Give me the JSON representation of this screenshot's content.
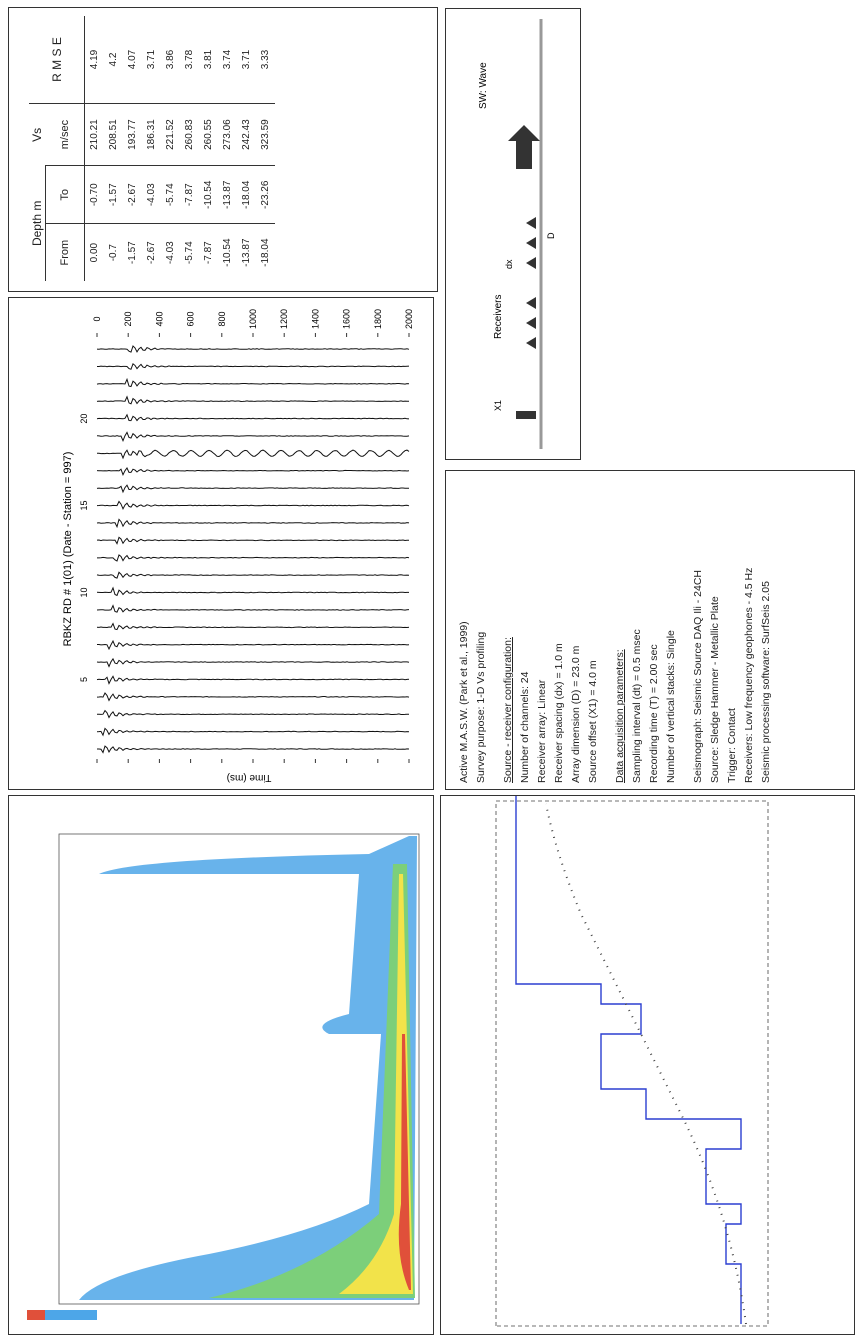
{
  "traces": {
    "title": "RBKZ RD # 1(01) (Date - Station = 997)",
    "trace_labels": [
      "5",
      "10",
      "15",
      "20"
    ],
    "time_ticks": [
      0,
      200,
      400,
      600,
      800,
      1000,
      1200,
      1400,
      1600,
      1800,
      2000
    ],
    "time_label": "Time (ms)"
  },
  "table": {
    "depth_header": "Depth m",
    "from_header": "From",
    "to_header": "To",
    "vs_header": "Vs",
    "vs_unit": "m/sec",
    "rmse_header": "R M S E",
    "rows": [
      [
        "0.00",
        "-0.70",
        "210.21",
        "4.19"
      ],
      [
        "-0.7",
        "-1.57",
        "208.51",
        "4.2"
      ],
      [
        "-1.57",
        "-2.67",
        "193.77",
        "4.07"
      ],
      [
        "-2.67",
        "-4.03",
        "186.31",
        "3.71"
      ],
      [
        "-4.03",
        "-5.74",
        "221.52",
        "3.86"
      ],
      [
        "-5.74",
        "-7.87",
        "260.83",
        "3.78"
      ],
      [
        "-7.87",
        "-10.54",
        "260.55",
        "3.81"
      ],
      [
        "-10.54",
        "-13.87",
        "273.06",
        "3.74"
      ],
      [
        "-13.87",
        "-18.04",
        "242.43",
        "3.71"
      ],
      [
        "-18.04",
        "-23.26",
        "323.59",
        "3.33"
      ]
    ]
  },
  "config": {
    "title": "Active M.A.S.W. (Park et al., 1999)",
    "purpose": "Survey purpose: 1-D Vs profiling",
    "sections": [
      {
        "heading": "Source - receiver configuration:",
        "items": [
          "Number of channels: 24",
          "Receiver array: Linear",
          "Receiver spacing (dx) = 1.0 m",
          "Array dimension (D) = 23.0 m",
          "Source offset (X1) = 4.0 m"
        ]
      },
      {
        "heading": "Data acquisition parameters:",
        "items": [
          "Sampling interval (dt) = 0.5 msec",
          "Recording time (T) = 2.00 sec",
          "Number of vertical stacks: Single"
        ]
      }
    ],
    "equipment": [
      "Seismograph: Seismic Source DAQ Ili - 24CH",
      "Source: Sledge Hammer - Metallic Plate",
      "Trigger: Contact",
      "Receivers: Low frequency geophones - 4.5 Hz",
      "Seismic processing software: SurfSeis 2.05"
    ]
  },
  "diagram": {
    "source": "X1",
    "receivers": "Receivers",
    "spacing": "dx",
    "dimension": "D",
    "wave": "SW: Wave"
  }
}
